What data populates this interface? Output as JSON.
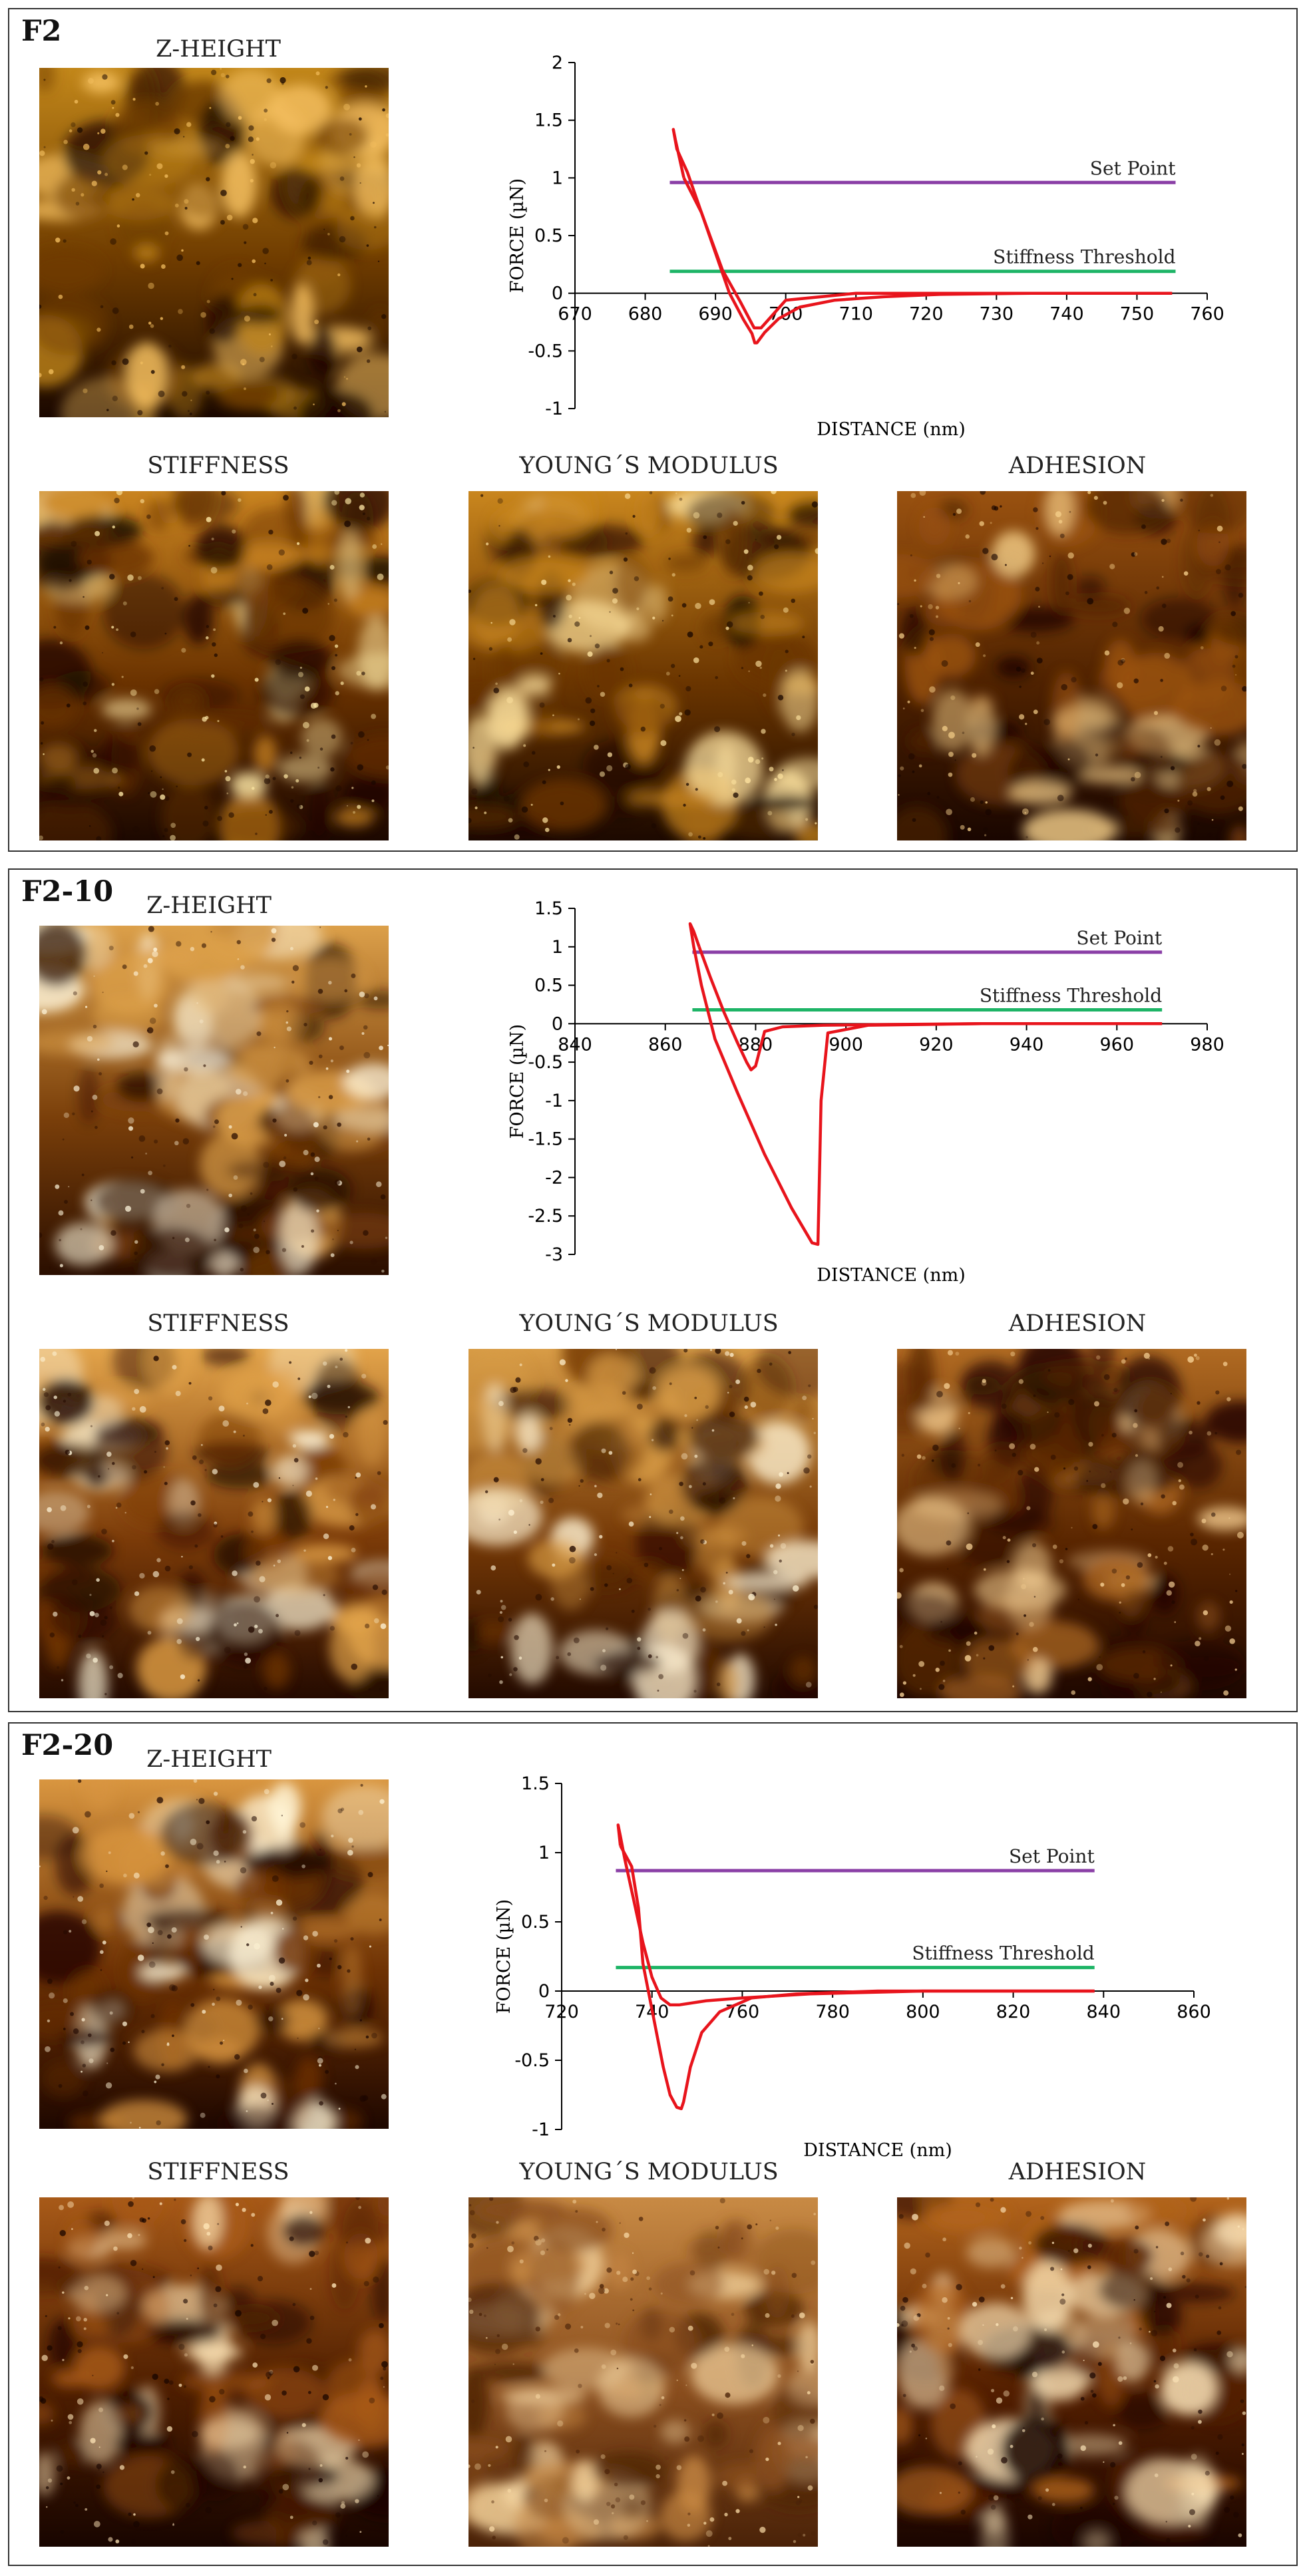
{
  "panels": [
    {
      "label": "F2",
      "maps": [
        "Z-HEIGHT",
        "STIFFNESS",
        "YOUNG´S MODULUS",
        "ADHESION"
      ],
      "map_tones": {
        "z": [
          "#f7c262",
          "#c2871a",
          "#6f3c00",
          "#1a0800"
        ],
        "stiffness": [
          "#ffe9a6",
          "#c98420",
          "#6a3200",
          "#1c0800"
        ],
        "modulus": [
          "#ffe4a0",
          "#c9861e",
          "#6a3500",
          "#1c0900"
        ],
        "adhesion": [
          "#f6d08a",
          "#9a5210",
          "#4f2200",
          "#190600"
        ]
      }
    },
    {
      "label": "F2-10",
      "maps": [
        "Z-HEIGHT",
        "STIFFNESS",
        "YOUNG´S MODULUS",
        "ADHESION"
      ],
      "map_tones": {
        "z": [
          "#fff6dc",
          "#dca04a",
          "#7a3f0a",
          "#2a0e00"
        ],
        "stiffness": [
          "#fff6da",
          "#e2a34a",
          "#7a3a08",
          "#240a00"
        ],
        "modulus": [
          "#fff2d2",
          "#d89c46",
          "#743806",
          "#230a00"
        ],
        "adhesion": [
          "#f8d296",
          "#b06a22",
          "#5a2600",
          "#1e0700"
        ]
      }
    },
    {
      "label": "F2-20",
      "maps": [
        "Z-HEIGHT",
        "STIFFNESS",
        "YOUNG´S MODULUS",
        "ADHESION"
      ],
      "map_tones": {
        "z": [
          "#fff4d6",
          "#d99640",
          "#6e3204",
          "#1e0700"
        ],
        "stiffness": [
          "#ffe6b8",
          "#a85a18",
          "#4e1e00",
          "#180500"
        ],
        "modulus": [
          "#f7d8a4",
          "#c88a44",
          "#8a4e1e",
          "#4a2208"
        ],
        "adhesion": [
          "#ffe8bc",
          "#b2641c",
          "#541f00",
          "#1a0500"
        ]
      }
    }
  ],
  "colors": {
    "curve": "#e8141c",
    "set_point": "#8a3fa6",
    "stiffness_threshold": "#1db466",
    "axis": "#000000"
  },
  "chart_data": [
    {
      "type": "line",
      "xlabel": "DISTANCE (nm)",
      "ylabel": "FORCE (µN)",
      "xlim": [
        670,
        760
      ],
      "ylim": [
        -1,
        2
      ],
      "xticks": [
        "670",
        "680",
        "690",
        "700",
        "710",
        "720",
        "730",
        "740",
        "750",
        "760"
      ],
      "yticks": [
        "2",
        "1.5",
        "1",
        "0.5",
        "0",
        "-0.5",
        "-1"
      ],
      "annotations": [
        {
          "label": "Set Point",
          "y": 0.96,
          "x_start": 683.5,
          "x_end": 755.5,
          "color": "#8a3fa6"
        },
        {
          "label": "Stiffness Threshold",
          "y": 0.19,
          "x_start": 683.5,
          "x_end": 755.5,
          "color": "#1db466"
        }
      ],
      "series": [
        {
          "x": [
            755,
            720,
            710,
            700,
            696.5,
            695.5,
            693.5,
            691,
            688,
            686,
            684.5,
            684,
            684.3,
            685.5
          ],
          "y": [
            0.0,
            0.0,
            0.0,
            -0.06,
            -0.3,
            -0.3,
            -0.07,
            0.2,
            0.7,
            1.05,
            1.25,
            1.42,
            1.33,
            1.0
          ]
        },
        {
          "x": [
            685.5,
            688,
            690,
            692,
            694,
            695.2,
            695.6,
            695.9,
            697,
            699,
            702,
            707,
            714,
            722,
            735,
            755
          ],
          "y": [
            1.0,
            0.7,
            0.35,
            0.0,
            -0.23,
            -0.35,
            -0.43,
            -0.43,
            -0.34,
            -0.22,
            -0.12,
            -0.06,
            -0.03,
            -0.01,
            0.0,
            0.0
          ]
        }
      ]
    },
    {
      "type": "line",
      "xlabel": "DISTANCE (nm)",
      "ylabel": "FORCE (µN)",
      "xlim": [
        840,
        980
      ],
      "ylim": [
        -3,
        1.5
      ],
      "xticks": [
        "840",
        "860",
        "880",
        "900",
        "920",
        "940",
        "960",
        "980"
      ],
      "yticks": [
        "1.5",
        "1",
        "0.5",
        "0",
        "-0.5",
        "-1",
        "-1.5",
        "-2",
        "-2.5",
        "-3"
      ],
      "annotations": [
        {
          "label": "Set Point",
          "y": 0.93,
          "x_start": 866,
          "x_end": 970,
          "color": "#8a3fa6"
        },
        {
          "label": "Stiffness Threshold",
          "y": 0.18,
          "x_start": 866,
          "x_end": 970,
          "color": "#1db466"
        }
      ],
      "series": [
        {
          "x": [
            970,
            930,
            905,
            896,
            894.5,
            893.8,
            892.5,
            888,
            882,
            876,
            871,
            868,
            866.3,
            865.5,
            866.3,
            867.5
          ],
          "y": [
            0.0,
            0.0,
            -0.02,
            -0.12,
            -1.0,
            -2.87,
            -2.85,
            -2.4,
            -1.7,
            -0.9,
            -0.2,
            0.5,
            1.0,
            1.3,
            1.2,
            1.0
          ]
        },
        {
          "x": [
            867.5,
            870,
            873,
            876,
            878,
            879,
            880,
            882,
            886,
            895,
            910,
            930,
            970
          ],
          "y": [
            1.0,
            0.6,
            0.15,
            -0.25,
            -0.5,
            -0.6,
            -0.55,
            -0.1,
            -0.04,
            -0.02,
            -0.01,
            0.0,
            0.0
          ]
        }
      ]
    },
    {
      "type": "line",
      "xlabel": "DISTANCE (nm)",
      "ylabel": "FORCE (µN)",
      "xlim": [
        720,
        860
      ],
      "ylim": [
        -1,
        1.5
      ],
      "xticks": [
        "720",
        "740",
        "760",
        "780",
        "800",
        "820",
        "840",
        "860"
      ],
      "yticks": [
        "1.5",
        "1",
        "0.5",
        "0",
        "-0.5",
        "-1"
      ],
      "annotations": [
        {
          "label": "Set Point",
          "y": 0.87,
          "x_start": 732,
          "x_end": 838,
          "color": "#8a3fa6"
        },
        {
          "label": "Stiffness Threshold",
          "y": 0.17,
          "x_start": 732,
          "x_end": 838,
          "color": "#1db466"
        }
      ],
      "series": [
        {
          "x": [
            838,
            800,
            775,
            760,
            752,
            746,
            744,
            742,
            740,
            738,
            736,
            734,
            733,
            732.5,
            733
          ],
          "y": [
            0.0,
            0.0,
            -0.02,
            -0.05,
            -0.07,
            -0.1,
            -0.1,
            -0.05,
            0.1,
            0.35,
            0.65,
            0.95,
            1.12,
            1.2,
            1.05
          ]
        },
        {
          "x": [
            733,
            735.5,
            737,
            738,
            739.5,
            741,
            742.5,
            744,
            745.5,
            746.5,
            747,
            748.5,
            751,
            755,
            762,
            772,
            790,
            838
          ],
          "y": [
            1.05,
            0.9,
            0.6,
            0.2,
            -0.05,
            -0.3,
            -0.55,
            -0.75,
            -0.84,
            -0.85,
            -0.8,
            -0.55,
            -0.3,
            -0.15,
            -0.05,
            -0.02,
            0.0,
            0.0
          ]
        }
      ]
    }
  ]
}
